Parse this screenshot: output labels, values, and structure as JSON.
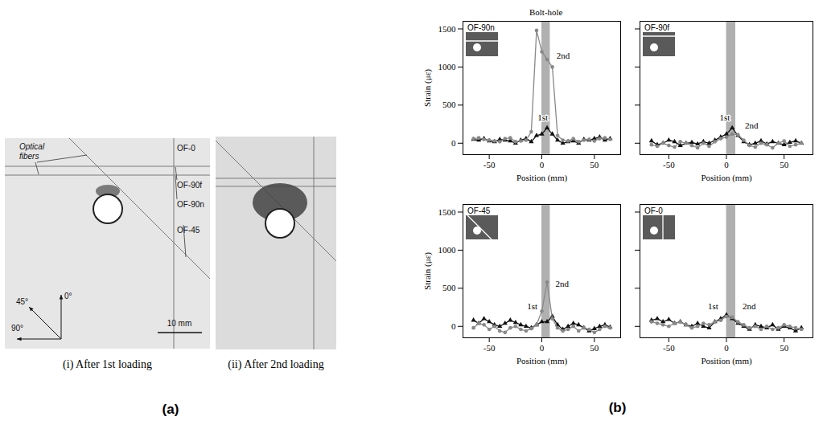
{
  "panel_a": {
    "label": "(a)",
    "photos": [
      {
        "caption": "(i) After 1st loading",
        "fiber_labels": [
          "OF-0",
          "OF-90f",
          "OF-90n",
          "OF-45"
        ],
        "fiber_note": "Optical fibers",
        "axis_labels": [
          "45°",
          "0°",
          "90°"
        ],
        "scale_bar": "10 mm"
      },
      {
        "caption": "(ii) After 2nd loading"
      }
    ]
  },
  "panel_b": {
    "label": "(b)",
    "bolt_hole_label": "Bolt-hole"
  },
  "chart_data": [
    {
      "type": "line",
      "title": "OF-90n",
      "xlabel": "Position (mm)",
      "ylabel": "Strain (με)",
      "tick_labels": true,
      "bolt_hole": [
        0,
        8
      ],
      "x": [
        -65,
        -60,
        -55,
        -50,
        -45,
        -40,
        -35,
        -30,
        -25,
        -20,
        -15,
        -10,
        -5,
        0,
        5,
        10,
        15,
        20,
        25,
        30,
        35,
        40,
        45,
        50,
        55,
        60,
        65
      ],
      "series": [
        {
          "name": "1st",
          "color": "#111111",
          "marker": "triangle",
          "line_style": "solid",
          "values": [
            50,
            40,
            60,
            30,
            20,
            50,
            40,
            30,
            0,
            40,
            60,
            20,
            100,
            120,
            200,
            120,
            40,
            0,
            20,
            30,
            0,
            50,
            40,
            60,
            80,
            40,
            60
          ]
        },
        {
          "name": "2nd",
          "color": "#888888",
          "marker": "circle",
          "line_style": "solid",
          "values": [
            60,
            70,
            50,
            40,
            30,
            20,
            60,
            70,
            20,
            30,
            40,
            150,
            1480,
            1200,
            1100,
            1000,
            100,
            40,
            30,
            60,
            20,
            40,
            50,
            30,
            60,
            70,
            50
          ]
        }
      ],
      "annotations": [
        {
          "text": "1st",
          "x": -4,
          "y": 330
        },
        {
          "text": "2nd",
          "x": 14,
          "y": 1150
        }
      ],
      "xlim": [
        -75,
        75
      ],
      "xticks": [
        -50,
        0,
        50
      ],
      "ylim": [
        -150,
        1600
      ],
      "yticks": [
        0,
        500,
        1000,
        1500
      ]
    },
    {
      "type": "line",
      "title": "OF-90f",
      "xlabel": "Position (mm)",
      "tick_labels": "x",
      "bolt_hole": [
        0,
        8
      ],
      "x": [
        -65,
        -60,
        -55,
        -50,
        -45,
        -40,
        -35,
        -30,
        -25,
        -20,
        -15,
        -10,
        -5,
        0,
        5,
        10,
        15,
        20,
        25,
        30,
        35,
        40,
        45,
        50,
        55,
        60,
        65
      ],
      "series": [
        {
          "name": "1st",
          "color": "#111111",
          "marker": "triangle",
          "line_style": "solid",
          "values": [
            30,
            -20,
            0,
            40,
            20,
            -30,
            0,
            10,
            -10,
            20,
            0,
            40,
            80,
            120,
            200,
            100,
            20,
            -20,
            0,
            30,
            -10,
            20,
            0,
            -20,
            10,
            30,
            0
          ]
        },
        {
          "name": "2nd",
          "color": "#888888",
          "marker": "circle",
          "line_style": "solid",
          "values": [
            -20,
            -40,
            0,
            -30,
            -50,
            20,
            0,
            -30,
            -60,
            0,
            -40,
            20,
            60,
            80,
            120,
            110,
            40,
            -30,
            -50,
            0,
            -20,
            -60,
            0,
            30,
            -40,
            -20,
            0
          ]
        }
      ],
      "annotations": [
        {
          "text": "1st",
          "x": -6,
          "y": 330
        },
        {
          "text": "2nd",
          "x": 16,
          "y": 230
        }
      ],
      "xlim": [
        -75,
        75
      ],
      "xticks": [
        -50,
        0,
        50
      ],
      "ylim": [
        -150,
        1600
      ],
      "yticks": [
        0,
        500,
        1000,
        1500
      ]
    },
    {
      "type": "line",
      "title": "OF-45",
      "xlabel": "Position (mm)",
      "ylabel": "Strain (με)",
      "tick_labels": true,
      "bolt_hole": [
        0,
        8
      ],
      "x": [
        -65,
        -60,
        -55,
        -50,
        -45,
        -40,
        -35,
        -30,
        -25,
        -20,
        -15,
        -10,
        -5,
        0,
        5,
        10,
        15,
        20,
        25,
        30,
        35,
        40,
        45,
        50,
        55,
        60,
        65
      ],
      "series": [
        {
          "name": "1st",
          "color": "#111111",
          "marker": "triangle",
          "line_style": "solid",
          "values": [
            80,
            40,
            100,
            60,
            20,
            0,
            40,
            80,
            50,
            20,
            0,
            -20,
            20,
            60,
            60,
            130,
            20,
            -40,
            0,
            40,
            20,
            -20,
            -60,
            -30,
            0,
            20,
            -10
          ]
        },
        {
          "name": "2nd",
          "color": "#888888",
          "marker": "circle",
          "line_style": "solid",
          "values": [
            -20,
            40,
            20,
            -40,
            0,
            -60,
            -80,
            -20,
            0,
            -40,
            -60,
            -30,
            20,
            200,
            580,
            100,
            -20,
            -60,
            -40,
            0,
            -60,
            -20,
            -40,
            -80,
            -40,
            0,
            -20
          ]
        }
      ],
      "annotations": [
        {
          "text": "1st",
          "x": -14,
          "y": 260
        },
        {
          "text": "2nd",
          "x": 13,
          "y": 560
        }
      ],
      "xlim": [
        -75,
        75
      ],
      "xticks": [
        -50,
        0,
        50
      ],
      "ylim": [
        -150,
        1600
      ],
      "yticks": [
        0,
        500,
        1000,
        1500
      ]
    },
    {
      "type": "line",
      "title": "OF-0",
      "xlabel": "Position (mm)",
      "tick_labels": "x",
      "bolt_hole": [
        0,
        8
      ],
      "x": [
        -65,
        -60,
        -55,
        -50,
        -45,
        -40,
        -35,
        -30,
        -25,
        -20,
        -15,
        -10,
        -5,
        0,
        5,
        10,
        15,
        20,
        25,
        30,
        35,
        40,
        45,
        50,
        55,
        60,
        65
      ],
      "series": [
        {
          "name": "1st",
          "color": "#111111",
          "marker": "triangle",
          "line_style": "solid",
          "values": [
            80,
            100,
            60,
            90,
            40,
            60,
            20,
            0,
            40,
            0,
            -20,
            60,
            100,
            150,
            100,
            40,
            0,
            -40,
            20,
            0,
            -20,
            20,
            -40,
            0,
            -20,
            -60,
            -20
          ]
        },
        {
          "name": "2nd",
          "color": "#888888",
          "marker": "circle",
          "line_style": "solid",
          "values": [
            60,
            40,
            20,
            0,
            40,
            60,
            20,
            -20,
            0,
            40,
            20,
            60,
            80,
            130,
            120,
            60,
            20,
            -20,
            0,
            -40,
            0,
            -40,
            -20,
            20,
            0,
            -20,
            -40
          ]
        }
      ],
      "annotations": [
        {
          "text": "1st",
          "x": -16,
          "y": 260
        },
        {
          "text": "2nd",
          "x": 14,
          "y": 260
        }
      ],
      "xlim": [
        -75,
        75
      ],
      "xticks": [
        -50,
        0,
        50
      ],
      "ylim": [
        -150,
        1600
      ],
      "yticks": [
        0,
        500,
        1000,
        1500
      ]
    }
  ]
}
